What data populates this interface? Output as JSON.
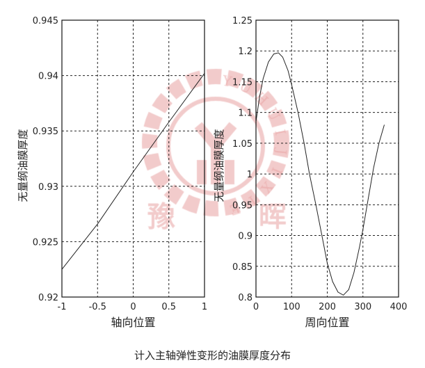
{
  "caption": "计入主轴弹性变形的油膜厚度分布",
  "watermark": {
    "chars": [
      "豫",
      "晖"
    ],
    "ring_text": "YUHUIJIXIE",
    "color": "#e8a0a0"
  },
  "chart_data": [
    {
      "type": "line",
      "xlabel": "轴向位置",
      "ylabel": "无量纲油膜厚度",
      "xlim": [
        -1,
        1
      ],
      "ylim": [
        0.92,
        0.945
      ],
      "xticks": [
        -1,
        -0.5,
        0,
        0.5,
        1
      ],
      "xtick_labels": [
        "-1",
        "-0.5",
        "0",
        "0.5",
        "1"
      ],
      "yticks": [
        0.92,
        0.925,
        0.93,
        0.935,
        0.94,
        0.945
      ],
      "ytick_labels": [
        "0.92",
        "0.925",
        "0.93",
        "0.935",
        "0.94",
        "0.945"
      ],
      "grid": true,
      "x": [
        -1,
        -0.5,
        0,
        0.5,
        1
      ],
      "y": [
        0.9225,
        0.9266,
        0.9313,
        0.9358,
        0.9402
      ]
    },
    {
      "type": "line",
      "xlabel": "周向位置",
      "ylabel": "无量纲油膜厚度",
      "xlim": [
        0,
        400
      ],
      "ylim": [
        0.8,
        1.25
      ],
      "xticks": [
        0,
        100,
        200,
        300,
        400
      ],
      "xtick_labels": [
        "0",
        "100",
        "200",
        "300",
        "400"
      ],
      "yticks": [
        0.8,
        0.85,
        0.9,
        0.95,
        1,
        1.05,
        1.1,
        1.15,
        1.2,
        1.25
      ],
      "ytick_labels": [
        "0.8",
        "0.85",
        "0.9",
        "0.95",
        "1",
        "1.05",
        "1.1",
        "1.15",
        "1.2",
        "1.25"
      ],
      "grid": true,
      "x": [
        0,
        10,
        20,
        35,
        50,
        63,
        75,
        90,
        100,
        118,
        135,
        150,
        168,
        185,
        200,
        215,
        230,
        245,
        260,
        275,
        290,
        300,
        315,
        330,
        345,
        360
      ],
      "y": [
        1.085,
        1.125,
        1.155,
        1.182,
        1.195,
        1.197,
        1.19,
        1.168,
        1.145,
        1.1,
        1.05,
        1.0,
        0.95,
        0.9,
        0.855,
        0.825,
        0.808,
        0.803,
        0.812,
        0.84,
        0.88,
        0.91,
        0.96,
        1.01,
        1.05,
        1.08
      ]
    }
  ]
}
